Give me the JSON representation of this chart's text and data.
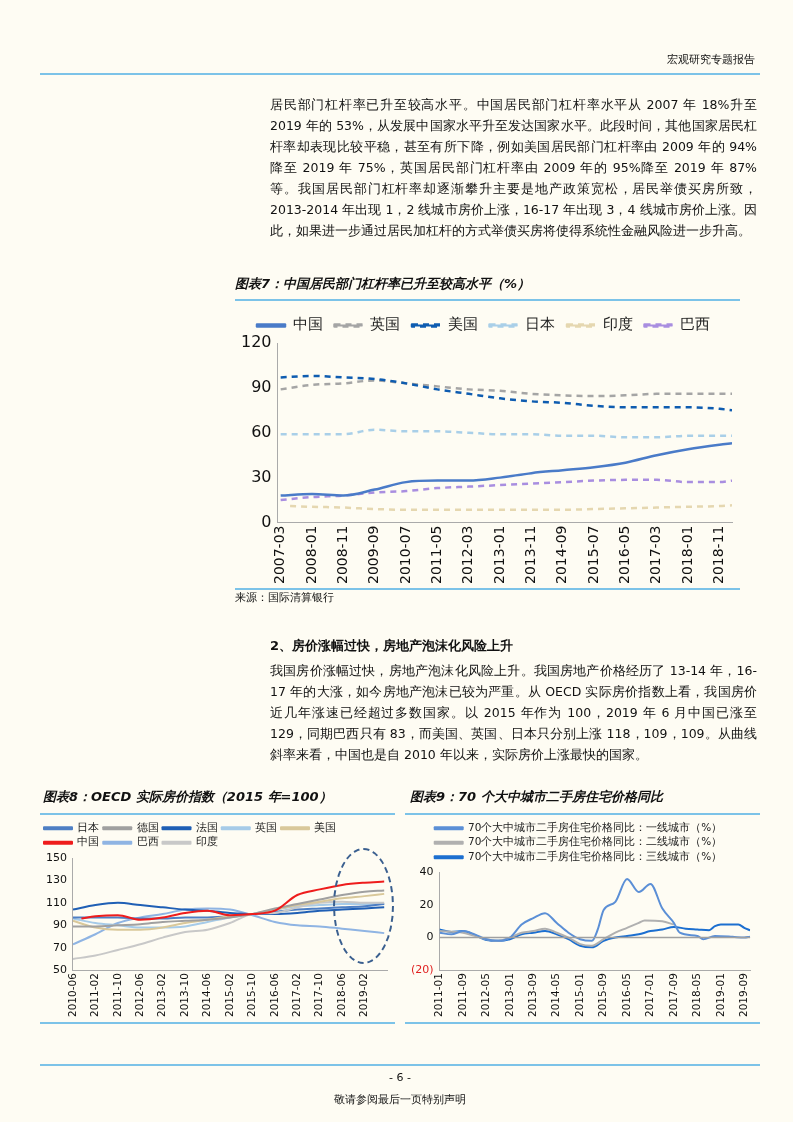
{
  "chart_data": [
    {
      "type": "line",
      "title": "图表7：中国居民部门杠杆率已升至较高水平（%）",
      "annotations": [
        "宏观研究专题报告",
        "居民部门杠杆率已升至较高水平。中国居民部门杠杆率水平从 2007 年 18%升至 2019 年的 53%，从发展中国家水平升至发达国家水平。此段时间，其他国家居民杠杆率却表现比较平稳，甚至有所下降，例如美国居民部门杠杆率由 2009 年的 94%降至 2019 年 75%，英国居民部门杠杆率由 2009 年的 95%降至 2019 年 87%等。我国居民部门杠杆率却逐渐攀升主要是地产政策宽松，居民举债买房所致，2013-2014 年出现 1，2 线城市房价上涨，16-17 年出现 3，4 线城市房价上涨。因此，如果进一步通过居民加杠杆的方式举债买房将使得系统性金融风险进一步升高。",
        "来源：国际清算银行"
      ],
      "x": [
        "2007-03",
        "2008-01",
        "2008-11",
        "2009-09",
        "2010-07",
        "2011-05",
        "2012-03",
        "2013-01",
        "2013-11",
        "2014-09",
        "2015-07",
        "2016-05",
        "2017-03",
        "2018-01",
        "2018-11",
        "2019-03"
      ],
      "xlim": [
        "2007-02",
        "2019-03"
      ],
      "xticks": [
        "2007-03",
        "2008-01",
        "2008-11",
        "2009-09",
        "2010-07",
        "2011-05",
        "2012-03",
        "2013-01",
        "2013-11",
        "2014-09",
        "2015-07",
        "2016-05",
        "2017-03",
        "2018-01",
        "2018-11"
      ],
      "ylim": [
        0,
        120
      ],
      "yticks": [
        0,
        30,
        60,
        90,
        120
      ],
      "legend": "top",
      "marker": "none",
      "series": [
        {
          "name": "中国",
          "color": "#4a7bc8",
          "line_style": "solid",
          "values": [
            18,
            19,
            18,
            22,
            27,
            28,
            28,
            30,
            33,
            35,
            37,
            40,
            45,
            49,
            52,
            53
          ]
        },
        {
          "name": "英国",
          "color": "#a5a5a5",
          "line_style": "dashed",
          "values": [
            89,
            92,
            93,
            95,
            93,
            91,
            89,
            88,
            86,
            85,
            84.5,
            85,
            86,
            86,
            86,
            86
          ]
        },
        {
          "name": "美国",
          "color": "#0e5cb0",
          "line_style": "dashed",
          "values": [
            97,
            98,
            97,
            96,
            93,
            89,
            86,
            83,
            81,
            80,
            78,
            77,
            77,
            77,
            76,
            75
          ]
        },
        {
          "name": "日本",
          "color": "#a9cfe8",
          "line_style": "dashed",
          "values": [
            59,
            59,
            59,
            62,
            61,
            61,
            60,
            59,
            59,
            58,
            58,
            57,
            57,
            58,
            58,
            58
          ]
        },
        {
          "name": "印度",
          "color": "#e5d7b0",
          "line_style": "dashed",
          "x": [
            "2007-06",
            "2008-01",
            "2008-11",
            "2009-09",
            "2010-07",
            "2011-05",
            "2012-03",
            "2013-01",
            "2013-11",
            "2014-09",
            "2015-07",
            "2016-05",
            "2017-03",
            "2018-01",
            "2018-11",
            "2019-03"
          ],
          "values": [
            11,
            10.5,
            10,
            9,
            8.5,
            8.5,
            8.5,
            8.5,
            8.5,
            8.5,
            9,
            9.5,
            10,
            10.5,
            11,
            11.5
          ]
        },
        {
          "name": "巴西",
          "color": "#a98ee0",
          "line_style": "dashed",
          "values": [
            15,
            17,
            18,
            20,
            21,
            23,
            24,
            25,
            26,
            27,
            28,
            28.5,
            28.5,
            27,
            27,
            28
          ]
        }
      ]
    },
    {
      "type": "line",
      "title": "图表8：OECD 实际房价指数（2015 年=100）",
      "annotations": [
        "2、房价涨幅过快，房地产泡沫化风险上升",
        "我国房价涨幅过快，房地产泡沫化风险上升。我国房地产价格经历了 13-14 年，16-17 年的大涨，如今房地产泡沫已较为严重。从 OECD 实际房价指数上看，我国房价近几年涨速已经超过多数国家。以 2015 年作为 100，2019 年 6 月中国已涨至 129，同期巴西只有 83，而美国、英国、日本只分别上涨 118，109，109。从曲线斜率来看，中国也是自 2010 年以来，实际房价上涨最快的国家。"
      ],
      "x": [
        "2010-06",
        "2011-02",
        "2011-10",
        "2012-06",
        "2013-02",
        "2013-10",
        "2014-06",
        "2015-02",
        "2015-10",
        "2016-06",
        "2017-02",
        "2017-10",
        "2018-06",
        "2019-02",
        "2019-09"
      ],
      "xlim": [
        "2010-06",
        "2019-10"
      ],
      "xticks": [
        "2010-06",
        "2011-02",
        "2011-10",
        "2012-06",
        "2013-02",
        "2013-10",
        "2014-06",
        "2015-02",
        "2015-10",
        "2016-06",
        "2017-02",
        "2017-10",
        "2018-06",
        "2019-02"
      ],
      "ylim": [
        50,
        150
      ],
      "yticks": [
        50,
        70,
        90,
        110,
        130,
        150
      ],
      "legend": "top left",
      "marker": "none",
      "series": [
        {
          "name": "日本",
          "color": "#4e7fc4",
          "values": [
            97,
            97,
            97,
            96,
            96,
            97,
            97,
            98,
            100,
            102,
            104,
            105,
            106,
            107,
            109
          ]
        },
        {
          "name": "德国",
          "color": "#a0a0a0",
          "values": [
            89,
            89,
            90,
            91,
            93,
            94,
            95,
            97,
            100,
            105,
            109,
            113,
            117,
            120,
            121
          ]
        },
        {
          "name": "法国",
          "color": "#1f5fb5",
          "values": [
            104,
            108,
            110,
            108,
            106,
            104,
            103,
            101,
            100,
            100,
            101,
            103,
            104,
            105,
            106
          ]
        },
        {
          "name": "英国",
          "color": "#a6cbe8",
          "values": [
            96,
            92,
            90,
            88,
            88,
            89,
            93,
            97,
            100,
            104,
            107,
            108,
            109,
            109,
            109
          ]
        },
        {
          "name": "美国",
          "color": "#d9c89a",
          "values": [
            94,
            88,
            86,
            86,
            88,
            92,
            95,
            98,
            100,
            104,
            108,
            111,
            114,
            116,
            118
          ]
        },
        {
          "name": "中国",
          "color": "#ee1c1c",
          "x": [
            "2010-09",
            "2011-02",
            "2011-10",
            "2012-06",
            "2013-02",
            "2013-10",
            "2014-06",
            "2015-02",
            "2015-10",
            "2016-06",
            "2017-02",
            "2017-10",
            "2018-06",
            "2019-02",
            "2019-09"
          ],
          "values": [
            96,
            98,
            99,
            95,
            97,
            101,
            103,
            99,
            100,
            103,
            117,
            122,
            126,
            128,
            129
          ]
        },
        {
          "name": "巴西",
          "color": "#8fb4e3",
          "values": [
            73,
            82,
            92,
            97,
            100,
            104,
            105,
            104,
            99,
            93,
            90,
            89,
            87,
            85,
            83
          ]
        },
        {
          "name": "印度",
          "color": "#c8c8c8",
          "values": [
            60,
            63,
            68,
            73,
            79,
            84,
            86,
            92,
            100,
            101,
            106,
            110,
            111,
            110,
            110
          ]
        }
      ]
    },
    {
      "type": "line",
      "title": "图表9：70 个大中城市二手房住宅价格同比",
      "annotations": [
        "- 6 -",
        "敬请参阅最后一页特别声明"
      ],
      "xlim": [
        "2011-01",
        "2019-11"
      ],
      "xticks": [
        "2011-01",
        "2011-09",
        "2012-05",
        "2013-01",
        "2013-09",
        "2014-05",
        "2015-01",
        "2015-09",
        "2016-05",
        "2017-01",
        "2017-09",
        "2018-05",
        "2019-01",
        "2019-09"
      ],
      "ylim": [
        -20,
        40
      ],
      "yticks": [
        {
          "value": -20,
          "label": "(20)"
        },
        0,
        20,
        40
      ],
      "legend": "top",
      "marker": "none",
      "series": [
        {
          "name": "70个大中城市二手房住宅价格同比：一线城市（%）",
          "color": "#5b8fd6",
          "x": [
            "2011-01",
            "2011-05",
            "2011-09",
            "2012-01",
            "2012-05",
            "2012-09",
            "2013-01",
            "2013-05",
            "2013-09",
            "2014-01",
            "2014-05",
            "2014-09",
            "2015-01",
            "2015-05",
            "2015-07",
            "2015-09",
            "2016-01",
            "2016-05",
            "2016-09",
            "2017-01",
            "2017-05",
            "2017-09",
            "2017-11",
            "2018-05",
            "2018-07",
            "2018-11",
            "2019-05",
            "2019-09",
            "2019-11"
          ],
          "values": [
            3,
            2,
            4,
            2,
            -1,
            -2,
            0,
            8,
            12,
            15,
            9,
            3,
            -1,
            -2,
            5,
            17,
            22,
            36,
            28,
            33,
            18,
            9,
            3,
            1,
            -1,
            1,
            0.5,
            0,
            0.5
          ]
        },
        {
          "name": "70个大中城市二手房住宅价格同比：二线城市（%）",
          "color": "#b0b0b0",
          "x": [
            "2011-01",
            "2011-09",
            "2012-05",
            "2012-09",
            "2013-01",
            "2013-05",
            "2013-09",
            "2014-01",
            "2014-05",
            "2014-09",
            "2015-01",
            "2015-05",
            "2015-09",
            "2016-01",
            "2016-05",
            "2016-09",
            "2016-11",
            "2017-05",
            "2017-09"
          ],
          "values": [
            4,
            3,
            -1,
            -2,
            0,
            3,
            4,
            5.5,
            3,
            0,
            -4,
            -5,
            -1,
            3,
            6,
            9,
            10.5,
            10,
            8
          ]
        },
        {
          "name": "70个大中城市二手房住宅价格同比：三线城市（%）",
          "color": "#1c6fd0",
          "x": [
            "2011-01",
            "2011-05",
            "2011-09",
            "2012-01",
            "2012-05",
            "2012-09",
            "2013-01",
            "2013-05",
            "2013-09",
            "2014-01",
            "2014-05",
            "2014-09",
            "2015-01",
            "2015-05",
            "2015-09",
            "2016-01",
            "2016-05",
            "2016-09",
            "2017-01",
            "2017-05",
            "2017-09",
            "2018-01",
            "2018-05",
            "2018-09",
            "2018-11",
            "2019-01",
            "2019-05",
            "2019-07",
            "2019-09",
            "2019-11"
          ],
          "values": [
            5,
            3.5,
            4,
            1.5,
            -1.5,
            -2,
            -1,
            2,
            3,
            4,
            2,
            -1,
            -5,
            -6,
            -2,
            0,
            1,
            2,
            4,
            5,
            6.5,
            5.5,
            5,
            4.5,
            7,
            8,
            8,
            8,
            6,
            4.5
          ]
        }
      ]
    }
  ]
}
